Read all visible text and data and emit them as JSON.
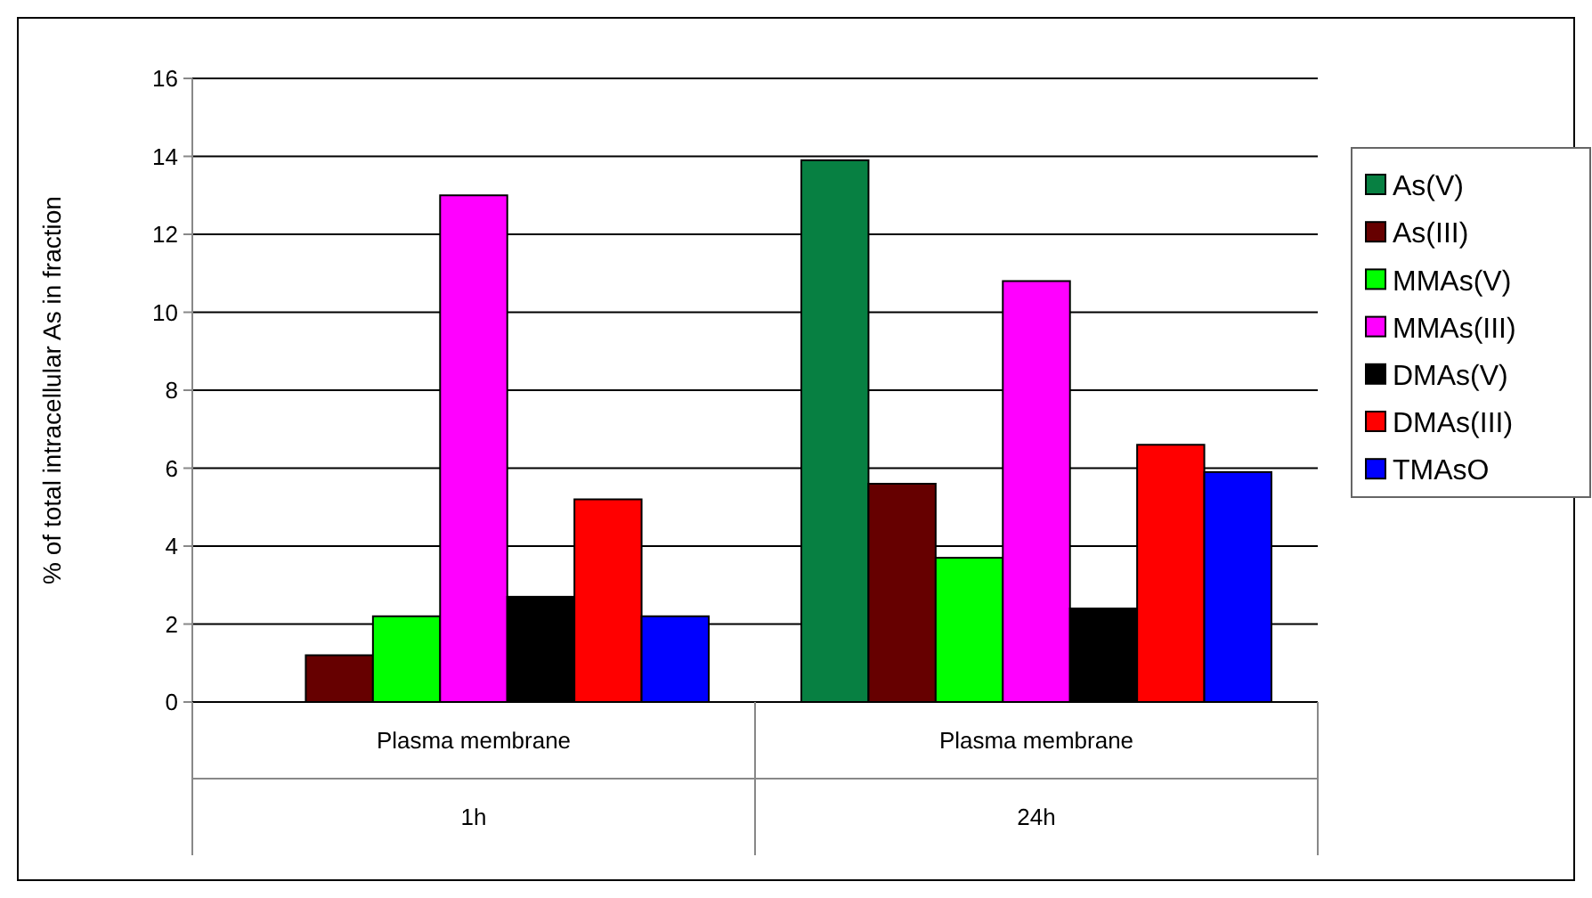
{
  "chart_data": {
    "type": "bar",
    "ylabel": "% of total intracellular As in fraction",
    "categories": [
      "Plasma membrane\n1h",
      "Plasma membrane\n24h"
    ],
    "series": [
      {
        "name": "As(V)",
        "color": "#078042",
        "values": [
          0,
          13.9
        ]
      },
      {
        "name": "As(III)",
        "color": "#660000",
        "values": [
          1.2,
          5.6
        ]
      },
      {
        "name": "MMAs(V)",
        "color": "#00ff00",
        "values": [
          2.2,
          3.7
        ]
      },
      {
        "name": "MMAs(III)",
        "color": "#ff00ff",
        "values": [
          13.0,
          10.8
        ]
      },
      {
        "name": "DMAs(V)",
        "color": "#000000",
        "values": [
          2.7,
          2.4
        ]
      },
      {
        "name": "DMAs(III)",
        "color": "#ff0000",
        "values": [
          5.2,
          6.6
        ]
      },
      {
        "name": "TMAsO",
        "color": "#0000ff",
        "values": [
          2.2,
          5.9
        ]
      }
    ],
    "ylim": [
      0,
      16
    ],
    "yticks": [
      0,
      2,
      4,
      6,
      8,
      10,
      12,
      14,
      16
    ],
    "grid": "y",
    "legend": "right"
  }
}
